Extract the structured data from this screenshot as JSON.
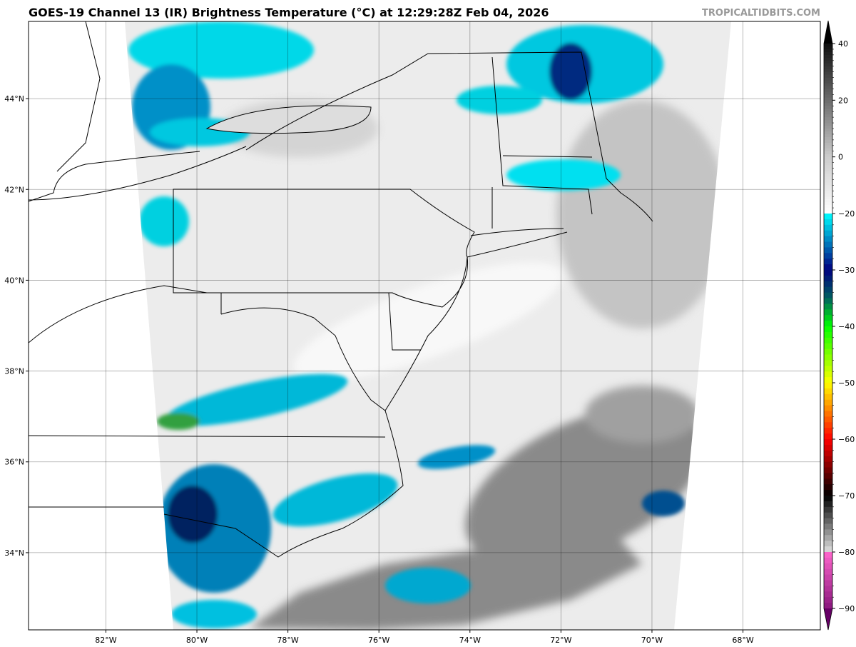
{
  "title": "GOES-19 Channel 13 (IR) Brightness Temperature (°C) at 12:29:28Z Feb 04, 2026",
  "brand": "TROPICALTIDBITS.COM",
  "map": {
    "lon_ticks": [
      {
        "value": -82,
        "label": "82°W"
      },
      {
        "value": -80,
        "label": "80°W"
      },
      {
        "value": -78,
        "label": "78°W"
      },
      {
        "value": -76,
        "label": "76°W"
      },
      {
        "value": -74,
        "label": "74°W"
      },
      {
        "value": -72,
        "label": "72°W"
      },
      {
        "value": -70,
        "label": "70°W"
      },
      {
        "value": -68,
        "label": "68°W"
      }
    ],
    "lat_ticks": [
      {
        "value": 44,
        "label": "44°N"
      },
      {
        "value": 42,
        "label": "42°N"
      },
      {
        "value": 40,
        "label": "40°N"
      },
      {
        "value": 38,
        "label": "38°N"
      },
      {
        "value": 36,
        "label": "36°N"
      },
      {
        "value": 34,
        "label": "34°N"
      }
    ],
    "extent": {
      "lon": [
        -83.7,
        -66.3
      ],
      "lat": [
        32.3,
        45.7
      ]
    }
  },
  "colorbar": {
    "ticks": [
      40,
      20,
      0,
      -20,
      -30,
      -40,
      -50,
      -60,
      -70,
      -80,
      -90
    ],
    "range": [
      -93,
      43
    ],
    "stops": [
      {
        "t": 43,
        "c": "#000000"
      },
      {
        "t": 0,
        "c": "#cccccc"
      },
      {
        "t": -20,
        "c": "#ffffff"
      },
      {
        "t": -20.01,
        "c": "#00ffff"
      },
      {
        "t": -30,
        "c": "#000080"
      },
      {
        "t": -35,
        "c": "#006060"
      },
      {
        "t": -40,
        "c": "#00ff00"
      },
      {
        "t": -50,
        "c": "#ffff00"
      },
      {
        "t": -55,
        "c": "#ff8000"
      },
      {
        "t": -60,
        "c": "#ff0000"
      },
      {
        "t": -70,
        "c": "#000000"
      },
      {
        "t": -79.9,
        "c": "#dddddd"
      },
      {
        "t": -80,
        "c": "#ff66cc"
      },
      {
        "t": -93,
        "c": "#660066"
      }
    ]
  }
}
